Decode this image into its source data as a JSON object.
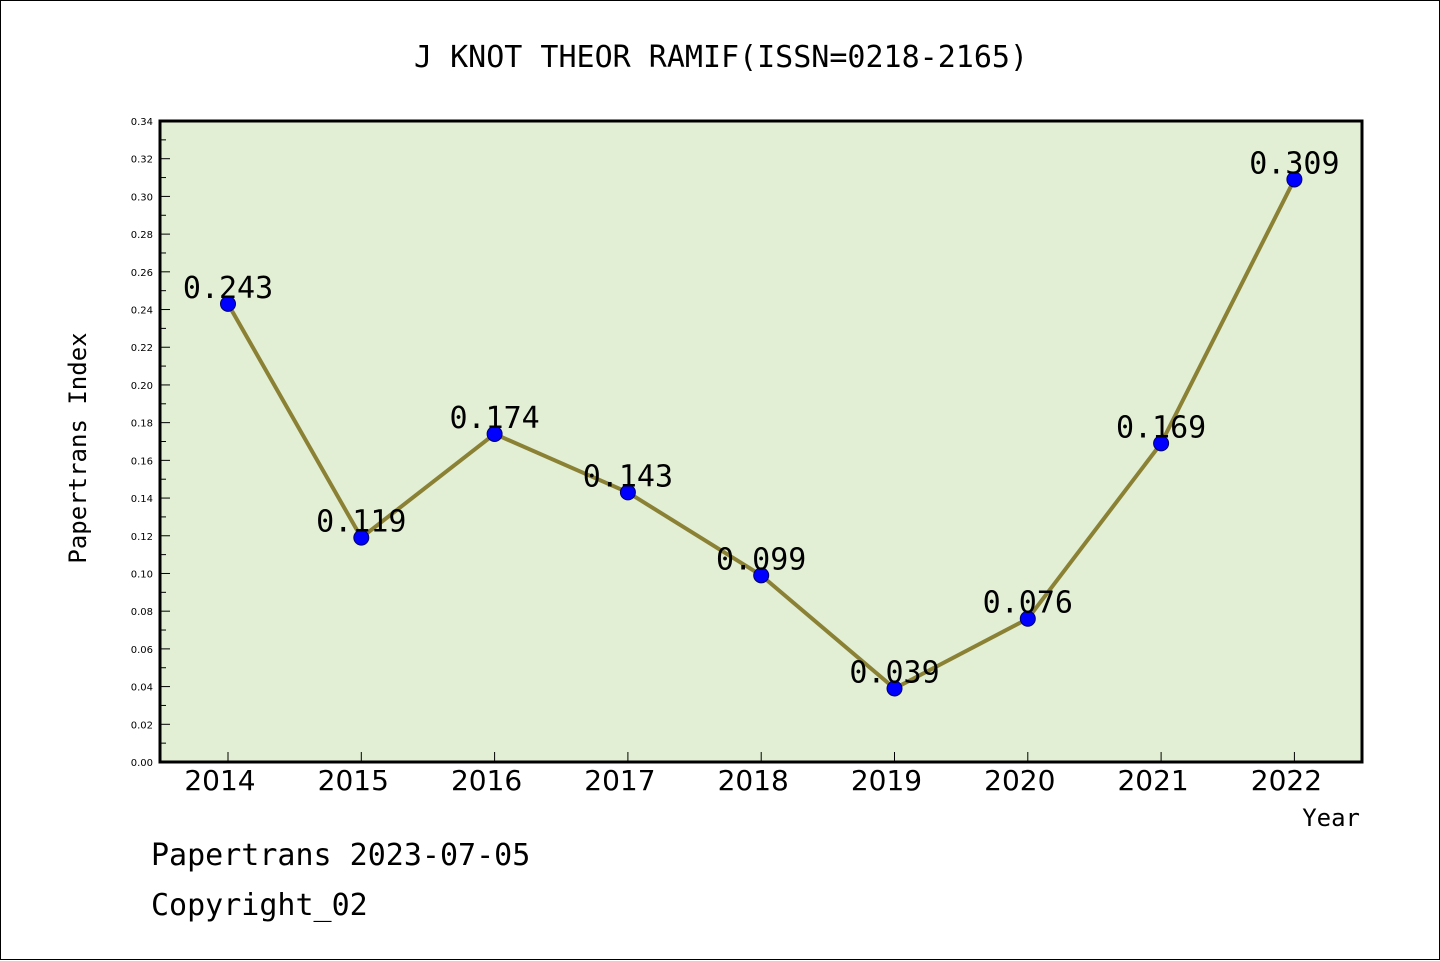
{
  "chart_data": {
    "type": "line",
    "title": "J KNOT THEOR RAMIF(ISSN=0218-2165)",
    "xlabel": "Year",
    "ylabel": "Papertrans Index",
    "ylim": [
      0,
      0.34
    ],
    "yticks": [
      "0.00",
      "0.02",
      "0.04",
      "0.06",
      "0.08",
      "0.10",
      "0.12",
      "0.14",
      "0.16",
      "0.18",
      "0.20",
      "0.22",
      "0.24",
      "0.26",
      "0.28",
      "0.30",
      "0.32",
      "0.34"
    ],
    "categories": [
      "2014",
      "2015",
      "2016",
      "2017",
      "2018",
      "2019",
      "2020",
      "2021",
      "2022"
    ],
    "values": [
      0.243,
      0.119,
      0.174,
      0.143,
      0.099,
      0.039,
      0.076,
      0.169,
      0.309
    ],
    "data_labels": [
      "0.243",
      "0.119",
      "0.174",
      "0.143",
      "0.099",
      "0.039",
      "0.076",
      "0.169",
      "0.309"
    ],
    "grid": false,
    "colors": {
      "plot_background": "#e2efd4",
      "line": "#8b8135",
      "marker": "#0000ff",
      "marker_edge": "#000066"
    }
  },
  "footer": {
    "line1": "Papertrans 2023-07-05",
    "line2": "Copyright_02"
  }
}
